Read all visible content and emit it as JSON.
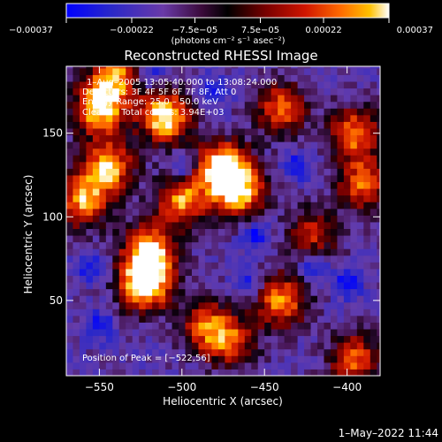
{
  "chart_data": {
    "type": "heatmap",
    "title": "Reconstructed RHESSI Image",
    "xlabel": "Heliocentric X (arcsec)",
    "ylabel": "Heliocentric Y (arcsec)",
    "xlim": [
      -570,
      -380
    ],
    "ylim": [
      5,
      190
    ],
    "x_ticks": [
      -550,
      -500,
      -450,
      -400
    ],
    "x_tick_labels": [
      "−550",
      "−500",
      "−450",
      "−400"
    ],
    "y_ticks": [
      50,
      100,
      150
    ],
    "y_tick_labels": [
      "50",
      "100",
      "150"
    ],
    "colorbar": {
      "min": -0.00037,
      "max": 0.00037,
      "ticks": [
        -0.00037,
        -0.00022,
        -7.5e-05,
        7.5e-05,
        0.00022,
        0.00037
      ],
      "tick_labels": [
        "−0.00037",
        "−0.00022",
        "−7.5e−05",
        "7.5e−05",
        "0.00022",
        "0.00037"
      ],
      "unit_label": "(photons cm⁻² s⁻¹ asec⁻²)",
      "colors": [
        "#0000ff",
        "#2020c0",
        "#6a3aa8",
        "#3a0a3a",
        "#000000",
        "#7a0000",
        "#d01500",
        "#ff6a00",
        "#ffc000",
        "#ffffff"
      ]
    },
    "annotations": [
      "1–Aug–2005 13:05:40.000 to 13:08:24.000",
      "Detectors: 3F 4F 5F 6F 7F 8F, Att 0",
      "Energy Range: 25.0 – 50.0 keV",
      "Clean     Total counts: 3.94E+03"
    ],
    "peak_label": "Position of Peak = [−522,56]",
    "peak": [
      -522,
      56
    ],
    "bright_regions": [
      {
        "x": -522,
        "y": 60,
        "intensity": 1.0
      },
      {
        "x": -520,
        "y": 80,
        "intensity": 0.85
      },
      {
        "x": -510,
        "y": 160,
        "intensity": 0.95
      },
      {
        "x": -475,
        "y": 130,
        "intensity": 0.95
      },
      {
        "x": -465,
        "y": 115,
        "intensity": 0.8
      },
      {
        "x": -550,
        "y": 165,
        "intensity": 0.9
      },
      {
        "x": -545,
        "y": 130,
        "intensity": 0.8
      },
      {
        "x": -560,
        "y": 110,
        "intensity": 0.75
      },
      {
        "x": -500,
        "y": 110,
        "intensity": 0.75
      },
      {
        "x": -440,
        "y": 165,
        "intensity": 0.65
      },
      {
        "x": -395,
        "y": 150,
        "intensity": 0.7
      },
      {
        "x": -390,
        "y": 120,
        "intensity": 0.65
      },
      {
        "x": -440,
        "y": 50,
        "intensity": 0.75
      },
      {
        "x": -485,
        "y": 35,
        "intensity": 0.6
      },
      {
        "x": -470,
        "y": 25,
        "intensity": 0.55
      },
      {
        "x": -395,
        "y": 15,
        "intensity": 0.65
      },
      {
        "x": -420,
        "y": 90,
        "intensity": 0.5
      },
      {
        "x": -540,
        "y": 185,
        "intensity": 0.7
      }
    ],
    "dark_regions": [
      {
        "x": -520,
        "y": 185
      },
      {
        "x": -480,
        "y": 175
      },
      {
        "x": -455,
        "y": 90
      },
      {
        "x": -420,
        "y": 70
      },
      {
        "x": -550,
        "y": 35
      },
      {
        "x": -555,
        "y": 70
      },
      {
        "x": -400,
        "y": 60
      },
      {
        "x": -430,
        "y": 130
      },
      {
        "x": -500,
        "y": 130
      },
      {
        "x": -460,
        "y": 60
      }
    ]
  },
  "footer": {
    "timestamp": "1–May–2022 11:44"
  }
}
